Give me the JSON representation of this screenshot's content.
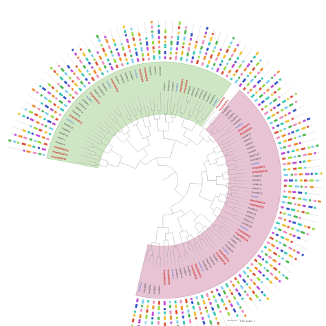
{
  "figure": {
    "clades": [
      {
        "name": "green-clade",
        "color": "#cfe6c4",
        "stroke": "#a9cf9c"
      },
      {
        "name": "pink-clade",
        "color": "#e7c3d3",
        "stroke": "#cfa0b6"
      }
    ],
    "label_colors": {
      "red": "#cc2b2b",
      "blue": "#3a6bd6",
      "black": "#333333"
    },
    "motif_colors": [
      "#7fd0f0",
      "#f2c230",
      "#c14fd8",
      "#4cb850",
      "#e0553a",
      "#3956c9",
      "#f090c0",
      "#9adb46",
      "#35c9b4",
      "#f28f2c"
    ],
    "leaves": [
      {
        "label": "AmpGBSP14",
        "color": "red"
      },
      {
        "label": "AmpGBSP15",
        "color": "red"
      },
      {
        "label": "AmpGBSP13",
        "color": "red"
      },
      {
        "label": "PtoSBP14",
        "color": "black"
      },
      {
        "label": "AthSPL1",
        "color": "black"
      },
      {
        "label": "AthSPL12",
        "color": "black"
      },
      {
        "label": "VviSBP16",
        "color": "black"
      },
      {
        "label": "OsaSPL10",
        "color": "black"
      },
      {
        "label": "AtriSBP8",
        "color": "blue"
      },
      {
        "label": "AmpGBSP12",
        "color": "red"
      },
      {
        "label": "PtoSBP11",
        "color": "black"
      },
      {
        "label": "AthSPL14",
        "color": "black"
      },
      {
        "label": "AthSPL16",
        "color": "black"
      },
      {
        "label": "VviSBP2",
        "color": "black"
      },
      {
        "label": "AtriSBP3",
        "color": "blue"
      },
      {
        "label": "AmpGBSP11",
        "color": "red"
      },
      {
        "label": "OsaSPL15",
        "color": "black"
      },
      {
        "label": "ZmaSBP19",
        "color": "black"
      },
      {
        "label": "PtoSBP9",
        "color": "black"
      },
      {
        "label": "AtriSBP1",
        "color": "blue"
      },
      {
        "label": "AmpGBSP10",
        "color": "red"
      },
      {
        "label": "AthSPL7",
        "color": "black"
      },
      {
        "label": "VviSBP12",
        "color": "black"
      },
      {
        "label": "OsaSPL5",
        "color": "black"
      },
      {
        "label": "ZmaSBP7",
        "color": "black"
      },
      {
        "label": "AtriSBP4",
        "color": "blue"
      },
      {
        "label": "AmpGBSP9",
        "color": "red"
      },
      {
        "label": "AmpGBSP8",
        "color": "red"
      },
      {
        "label": "PtoSBP2",
        "color": "black"
      },
      {
        "label": "AthSPL9",
        "color": "black"
      },
      {
        "label": "AthSPL15",
        "color": "black"
      },
      {
        "label": "VviSBP7",
        "color": "black"
      },
      {
        "label": "OsaSPL14",
        "color": "black"
      },
      {
        "label": "ZmaSBP2",
        "color": "black"
      },
      {
        "label": "AtriSBP6",
        "color": "blue"
      },
      {
        "label": "AmpGBSP7",
        "color": "red"
      },
      {
        "label": "AmpGBSP6",
        "color": "red"
      },
      {
        "label": "PtoSBP5",
        "color": "black"
      },
      {
        "label": "AthSPL2",
        "color": "black"
      },
      {
        "label": "AthSPL10",
        "color": "black"
      },
      {
        "label": "AthSPL11",
        "color": "black"
      },
      {
        "label": "VviSBP10",
        "color": "black"
      },
      {
        "label": "OsaSPL3",
        "color": "black"
      },
      {
        "label": "ZmaSBP11",
        "color": "black"
      },
      {
        "label": "AtriSBP9",
        "color": "blue"
      },
      {
        "label": "AmpGBSP5",
        "color": "red"
      },
      {
        "label": "AmpGBSP4",
        "color": "red"
      },
      {
        "label": "PtoSBP19",
        "color": "black"
      },
      {
        "label": "AthSPL6",
        "color": "black"
      },
      {
        "label": "VviSBP4",
        "color": "black"
      },
      {
        "label": "OsaSPL8",
        "color": "black"
      },
      {
        "label": "ZmaSBP5",
        "color": "black"
      },
      {
        "label": "AtriSBP2",
        "color": "blue"
      },
      {
        "label": "AmpGBSP3",
        "color": "red"
      },
      {
        "label": "AmpGBSP2",
        "color": "red"
      },
      {
        "label": "PtoSBP21",
        "color": "black"
      },
      {
        "label": "AthSPL3",
        "color": "black"
      },
      {
        "label": "AthSPL4",
        "color": "black"
      },
      {
        "label": "AthSPL5",
        "color": "black"
      },
      {
        "label": "VviSBP9",
        "color": "black"
      },
      {
        "label": "OsaSPL12",
        "color": "black"
      },
      {
        "label": "ZmaSBP14",
        "color": "black"
      },
      {
        "label": "AtriSBP5",
        "color": "blue"
      },
      {
        "label": "AmpGBSP1",
        "color": "red"
      },
      {
        "label": "AmpGBSP24",
        "color": "red"
      },
      {
        "label": "PtoSBP27",
        "color": "black"
      },
      {
        "label": "AthSPL8",
        "color": "black"
      },
      {
        "label": "VviSBP13",
        "color": "black"
      },
      {
        "label": "OsaSPL4",
        "color": "black"
      },
      {
        "label": "ZmaSBP22",
        "color": "black"
      },
      {
        "label": "AtriSBP7",
        "color": "blue"
      },
      {
        "label": "AmpGBSP23",
        "color": "red"
      },
      {
        "label": "AmpGBSP22",
        "color": "red"
      },
      {
        "label": "PtoSBP24",
        "color": "black"
      },
      {
        "label": "AthSPL13",
        "color": "black"
      },
      {
        "label": "VviSBP15",
        "color": "black"
      },
      {
        "label": "OsaSPL17",
        "color": "black"
      },
      {
        "label": "ZmaSBP25",
        "color": "black"
      },
      {
        "label": "AtriSBP10",
        "color": "blue"
      },
      {
        "label": "AmpGBSP21",
        "color": "red"
      },
      {
        "label": "AmpGBSP20",
        "color": "red"
      },
      {
        "label": "PtoSBP16",
        "color": "black"
      },
      {
        "label": "VviSBP1",
        "color": "black"
      },
      {
        "label": "OsaSPL2",
        "color": "black"
      },
      {
        "label": "ZmaSBP28",
        "color": "black"
      },
      {
        "label": "AtriSBP11",
        "color": "blue"
      },
      {
        "label": "AmpGBSP19",
        "color": "red"
      },
      {
        "label": "AmpGBSP18",
        "color": "red"
      },
      {
        "label": "PtoSBP6",
        "color": "black"
      },
      {
        "label": "VviSBP18",
        "color": "black"
      },
      {
        "label": "OsaSPL19",
        "color": "black"
      },
      {
        "label": "ZmaSBP30",
        "color": "black"
      },
      {
        "label": "AtriSBP12",
        "color": "blue"
      },
      {
        "label": "AmpGBSP17",
        "color": "red"
      },
      {
        "label": "AmpGBSP16",
        "color": "red"
      },
      {
        "label": "PtoSBP28",
        "color": "black"
      },
      {
        "label": "VviSBP5",
        "color": "black"
      },
      {
        "label": "OsaSPL11",
        "color": "black"
      },
      {
        "label": "ZmaSBP4",
        "color": "black"
      },
      {
        "label": "AtriSBP13",
        "color": "blue"
      },
      {
        "label": "AmpGBSP25",
        "color": "red"
      },
      {
        "label": "AmpGBSP26",
        "color": "red"
      },
      {
        "label": "PtoSBP3",
        "color": "black"
      },
      {
        "label": "VviSBP6",
        "color": "black"
      },
      {
        "label": "OsaSPL6",
        "color": "black"
      },
      {
        "label": "ZmaSBP9",
        "color": "black"
      },
      {
        "label": "AtriSBP14",
        "color": "blue"
      }
    ],
    "scale_label": "Tree scale: 1"
  }
}
